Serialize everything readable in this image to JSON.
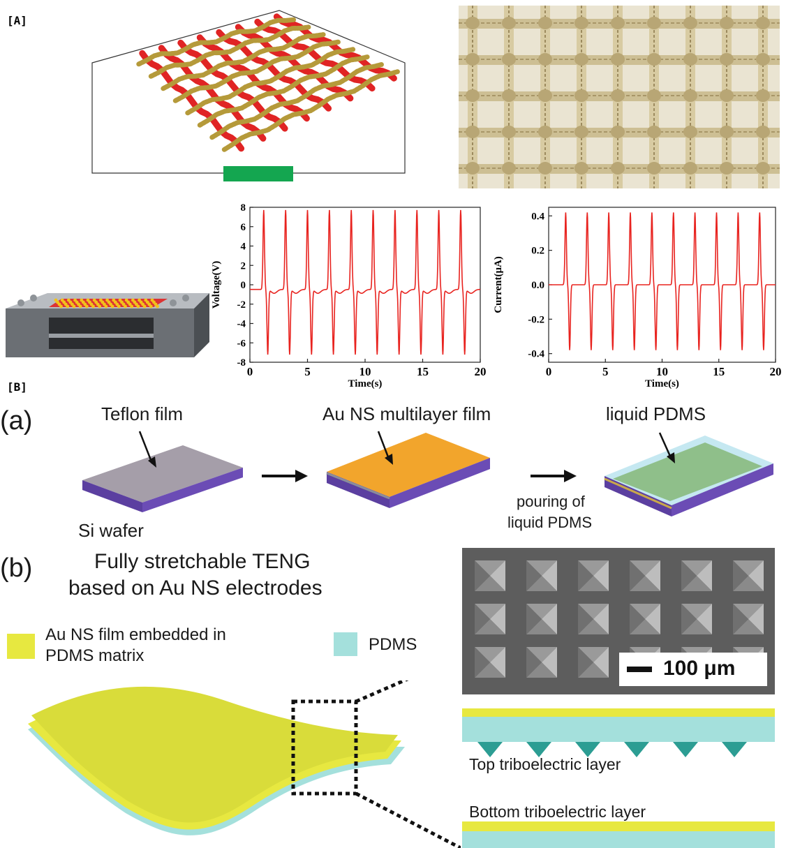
{
  "panels": {
    "A": "[A]",
    "B": "[B]",
    "a": "(a)",
    "b": "(b)"
  },
  "colors": {
    "red_fiber": "#e02424",
    "gold_fiber": "#b59a3a",
    "curve": "#e8231f",
    "scale_green": "#14a650",
    "teflon": "#a59ea9",
    "si": "#5b3fa0",
    "gold": "#f2a52c",
    "pdms": "#a4e0dc",
    "au_ns": "#e7e840"
  },
  "chart_data": [
    {
      "type": "line",
      "xlabel": "Time(s)",
      "ylabel": "Voltage(V)",
      "xlim": [
        0,
        20
      ],
      "ylim": [
        -8,
        8
      ],
      "xticks": [
        "0",
        "5",
        "10",
        "15",
        "20"
      ],
      "yticks": [
        "8",
        "6",
        "4",
        "2",
        "0",
        "-2",
        "-4",
        "-6",
        "-8"
      ],
      "peaks_t": [
        1.2,
        3.1,
        5.0,
        6.9,
        8.8,
        10.7,
        12.6,
        14.5,
        16.4,
        18.3
      ],
      "peak_max": 8.2,
      "peak_min": -6.7,
      "baseline": -0.8
    },
    {
      "type": "line",
      "xlabel": "Time(s)",
      "ylabel": "Current(μA)",
      "xlim": [
        0,
        20
      ],
      "ylim": [
        -0.45,
        0.45
      ],
      "xticks": [
        "0",
        "5",
        "10",
        "15",
        "20"
      ],
      "yticks": [
        "0.4",
        "0.2",
        "0.0",
        "-0.2",
        "-0.4"
      ],
      "peaks_t": [
        1.5,
        3.4,
        5.3,
        7.2,
        9.1,
        11.0,
        12.9,
        14.8,
        16.7,
        18.6
      ],
      "peak_max": 0.42,
      "peak_min": -0.38,
      "baseline": 0.0
    }
  ],
  "labels_a": {
    "teflon": "Teflon film",
    "au_film": "Au NS multilayer film",
    "liquid_pdms": "liquid PDMS",
    "si_wafer": "Si wafer",
    "pouring_1": "pouring of",
    "pouring_2": "liquid PDMS"
  },
  "labels_b": {
    "title_1": "Fully stretchable TENG",
    "title_2": "based on Au NS electrodes",
    "legend_au_1": "Au NS film embedded in",
    "legend_au_2": "PDMS matrix",
    "legend_pdms": "PDMS",
    "scale_bar": "100 μm",
    "top_layer": "Top triboelectric layer",
    "bottom_layer": "Bottom triboelectric layer"
  }
}
